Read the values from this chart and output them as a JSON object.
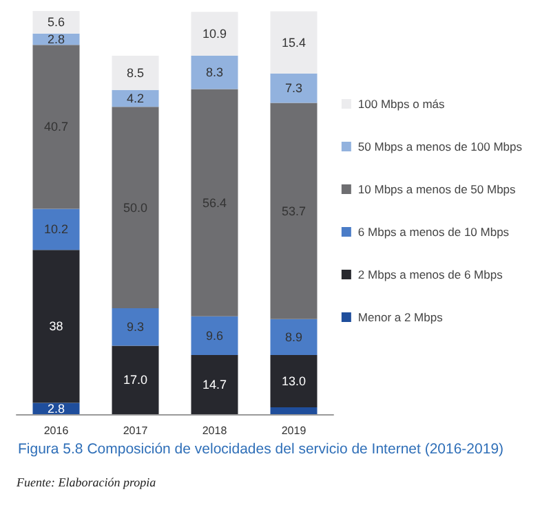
{
  "chart_data": {
    "type": "bar",
    "stacked": true,
    "title": "Figura 5.8 Composición de velocidades del servicio de Internet (2016-2019)",
    "annotations": [
      "Fuente: Elaboración propia"
    ],
    "categories": [
      "2016",
      "2017",
      "2018",
      "2019"
    ],
    "legend": "right",
    "series": [
      {
        "name": "Menor a 2 Mbps",
        "color": "#1f4e9c",
        "values": [
          2.8,
          null,
          null,
          1.7
        ],
        "value_labels": [
          "2.8",
          null,
          null,
          null
        ]
      },
      {
        "name": "2 Mbps a menos de 6 Mbps",
        "color": "#27282e",
        "values": [
          38,
          17.0,
          14.7,
          13.0
        ],
        "value_labels": [
          "38",
          "17.0",
          "14.7",
          "13.0"
        ]
      },
      {
        "name": "6 Mbps a menos de 10 Mbps",
        "color": "#4a7cc7",
        "values": [
          10.2,
          9.3,
          9.6,
          8.9
        ],
        "value_labels": [
          "10.2",
          "9.3",
          "9.6",
          "8.9"
        ]
      },
      {
        "name": "10 Mbps a menos de 50 Mbps",
        "color": "#6e6e71",
        "values": [
          40.7,
          50.0,
          56.4,
          53.7
        ],
        "value_labels": [
          "40.7",
          "50.0",
          "56.4",
          "53.7"
        ]
      },
      {
        "name": "50 Mbps a menos de 100 Mbps",
        "color": "#92b2de",
        "values": [
          2.8,
          4.2,
          8.3,
          7.3
        ],
        "value_labels": [
          "2.8",
          "4.2",
          "8.3",
          "7.3"
        ]
      },
      {
        "name": "100 Mbps o más",
        "color": "#ececee",
        "values": [
          5.6,
          8.5,
          10.9,
          15.4
        ],
        "value_labels": [
          "5.6",
          "8.5",
          "10.9",
          "15.4"
        ]
      }
    ]
  }
}
